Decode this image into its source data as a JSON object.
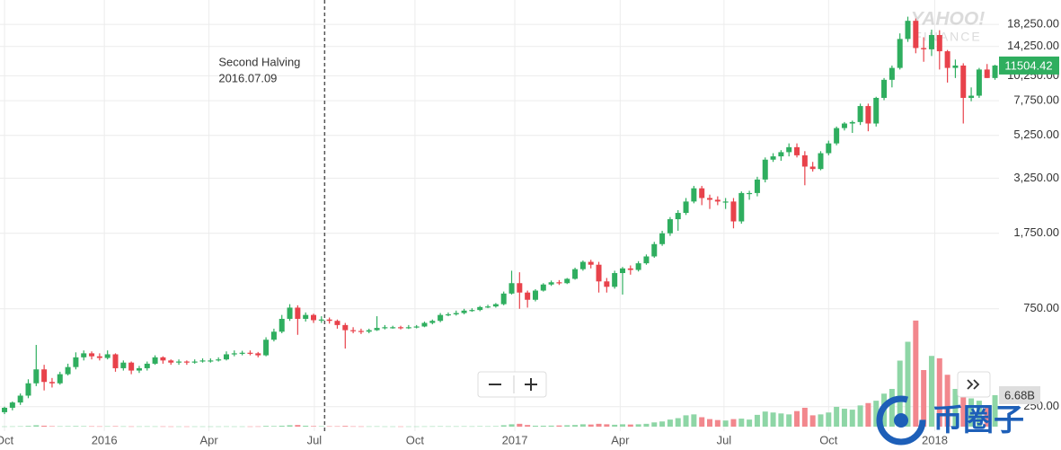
{
  "chart_data": {
    "type": "candlestick",
    "y_log": true,
    "grid": true,
    "ylim": [
      190,
      24000
    ],
    "yticks": [
      {
        "value": 250,
        "label": "250.00"
      },
      {
        "value": 750,
        "label": "750.00"
      },
      {
        "value": 1750,
        "label": "1,750.00"
      },
      {
        "value": 3250,
        "label": "3,250.00"
      },
      {
        "value": 5250,
        "label": "5,250.00"
      },
      {
        "value": 7750,
        "label": "7,750.00"
      },
      {
        "value": 10250,
        "label": "10,250.00"
      },
      {
        "value": 14250,
        "label": "14,250.00"
      },
      {
        "value": 18250,
        "label": "18,250.00"
      }
    ],
    "xlim": [
      -0.57,
      125.28
    ],
    "xticks": [
      {
        "value": 0,
        "label": "Oct"
      },
      {
        "value": 12.6,
        "label": "2016"
      },
      {
        "value": 25.8,
        "label": "Apr"
      },
      {
        "value": 39.1,
        "label": "Jul"
      },
      {
        "value": 51.8,
        "label": "Oct"
      },
      {
        "value": 64.4,
        "label": "2017"
      },
      {
        "value": 77.7,
        "label": "Apr"
      },
      {
        "value": 90.8,
        "label": "Jul"
      },
      {
        "value": 104,
        "label": "Oct"
      },
      {
        "value": 117.4,
        "label": "2018"
      }
    ],
    "up_color": "#2fae5f",
    "down_color": "#e8424b",
    "volume_up_color": "#8ed6a6",
    "volume_down_color": "#f2878d",
    "open": [
      235,
      247,
      262,
      283,
      325,
      380,
      330,
      325,
      360,
      390,
      435,
      455,
      440,
      432,
      450,
      385,
      410,
      375,
      385,
      405,
      435,
      420,
      410,
      415,
      410,
      415,
      420,
      420,
      425,
      450,
      455,
      458,
      455,
      445,
      530,
      580,
      670,
      760,
      670,
      700,
      660,
      665,
      655,
      625,
      590,
      585,
      580,
      590,
      605,
      610,
      610,
      605,
      610,
      615,
      640,
      655,
      700,
      705,
      715,
      735,
      740,
      765,
      770,
      790,
      890,
      1000,
      900,
      830,
      920,
      985,
      1010,
      1000,
      1050,
      1170,
      1270,
      1230,
      1020,
      960,
      1120,
      1180,
      1160,
      1250,
      1350,
      1550,
      1750,
      2050,
      2200,
      2500,
      2900,
      2600,
      2550,
      2500,
      2500,
      2000,
      2750,
      2750,
      3200,
      4000,
      4150,
      4350,
      4600,
      4200,
      3700,
      3600,
      4300,
      4800,
      5700,
      6000,
      6100,
      7300,
      6000,
      8000,
      9800,
      11200,
      15500,
      19000,
      14000,
      13800,
      16200,
      13500,
      11200,
      11500,
      8000,
      8200,
      11000,
      10000
    ],
    "high": [
      250,
      265,
      290,
      340,
      500,
      400,
      345,
      370,
      405,
      460,
      470,
      465,
      455,
      470,
      455,
      420,
      415,
      395,
      415,
      445,
      440,
      425,
      425,
      420,
      425,
      430,
      430,
      435,
      465,
      470,
      468,
      470,
      462,
      545,
      600,
      700,
      790,
      780,
      720,
      710,
      690,
      680,
      665,
      640,
      610,
      600,
      600,
      690,
      625,
      620,
      620,
      625,
      625,
      650,
      665,
      715,
      720,
      735,
      750,
      755,
      775,
      785,
      800,
      910,
      1150,
      1130,
      920,
      935,
      1000,
      1030,
      1035,
      1060,
      1190,
      1290,
      1300,
      1270,
      1060,
      1150,
      1200,
      1220,
      1280,
      1380,
      1590,
      1800,
      2100,
      2270,
      2600,
      2980,
      2980,
      2700,
      2650,
      2600,
      2600,
      2800,
      2820,
      3300,
      4100,
      4300,
      4450,
      4800,
      4800,
      4400,
      3900,
      4400,
      4950,
      5800,
      6100,
      6200,
      7500,
      7500,
      8100,
      10000,
      11500,
      16500,
      19900,
      19500,
      15800,
      17200,
      17100,
      13700,
      12300,
      11800,
      9000,
      11200,
      11700,
      11600
    ],
    "low": [
      230,
      240,
      255,
      275,
      315,
      300,
      310,
      320,
      355,
      380,
      420,
      425,
      420,
      425,
      370,
      375,
      360,
      365,
      375,
      400,
      405,
      400,
      400,
      400,
      405,
      410,
      410,
      415,
      420,
      440,
      445,
      445,
      435,
      440,
      520,
      570,
      655,
      560,
      650,
      640,
      640,
      635,
      600,
      480,
      570,
      565,
      570,
      585,
      595,
      600,
      595,
      598,
      602,
      610,
      630,
      645,
      690,
      695,
      705,
      725,
      730,
      755,
      760,
      780,
      880,
      750,
      760,
      815,
      910,
      970,
      980,
      990,
      1040,
      1150,
      1180,
      900,
      900,
      940,
      880,
      1100,
      1140,
      1230,
      1330,
      1520,
      1700,
      1800,
      2150,
      2450,
      2400,
      2300,
      2400,
      2300,
      1850,
      1950,
      2550,
      2650,
      3100,
      3900,
      3950,
      4150,
      4100,
      3000,
      3500,
      3550,
      4200,
      4700,
      5550,
      5400,
      5900,
      5500,
      5800,
      7800,
      9000,
      11000,
      15000,
      13200,
      12000,
      12800,
      11000,
      9500,
      10000,
      6000,
      7700,
      8000,
      10000,
      9800
    ],
    "close": [
      247,
      262,
      283,
      325,
      380,
      330,
      325,
      360,
      390,
      435,
      455,
      440,
      432,
      450,
      385,
      410,
      375,
      385,
      405,
      435,
      420,
      410,
      415,
      410,
      415,
      420,
      420,
      425,
      450,
      455,
      458,
      455,
      445,
      530,
      580,
      670,
      760,
      670,
      700,
      660,
      665,
      655,
      625,
      590,
      585,
      580,
      590,
      605,
      610,
      610,
      605,
      610,
      615,
      640,
      655,
      700,
      705,
      715,
      735,
      740,
      765,
      770,
      790,
      890,
      1000,
      900,
      830,
      920,
      985,
      1010,
      1000,
      1050,
      1170,
      1270,
      1230,
      1020,
      960,
      1120,
      1180,
      1160,
      1250,
      1350,
      1550,
      1750,
      2050,
      2200,
      2500,
      2900,
      2600,
      2550,
      2500,
      2500,
      2000,
      2750,
      2750,
      3200,
      4000,
      4150,
      4350,
      4600,
      4200,
      3700,
      3600,
      4300,
      4800,
      5700,
      6000,
      6100,
      7300,
      6000,
      8000,
      9800,
      11200,
      15500,
      19000,
      14000,
      13800,
      16200,
      13500,
      11200,
      11500,
      8000,
      8200,
      11000,
      10000,
      11504.42
    ],
    "y2lim": [
      0,
      24
    ],
    "y2ticks": [
      {
        "value": 6.68,
        "label": "6.68B"
      }
    ],
    "volume": [
      0.05,
      0.06,
      0.08,
      0.15,
      0.3,
      0.2,
      0.1,
      0.08,
      0.1,
      0.12,
      0.1,
      0.08,
      0.07,
      0.08,
      0.1,
      0.07,
      0.06,
      0.06,
      0.07,
      0.06,
      0.06,
      0.05,
      0.05,
      0.05,
      0.05,
      0.05,
      0.05,
      0.05,
      0.06,
      0.05,
      0.05,
      0.05,
      0.06,
      0.15,
      0.12,
      0.2,
      0.3,
      0.35,
      0.2,
      0.12,
      0.1,
      0.08,
      0.08,
      0.15,
      0.07,
      0.06,
      0.06,
      0.07,
      0.05,
      0.05,
      0.05,
      0.05,
      0.05,
      0.06,
      0.07,
      0.08,
      0.07,
      0.07,
      0.08,
      0.07,
      0.09,
      0.08,
      0.1,
      0.3,
      0.5,
      0.6,
      0.35,
      0.2,
      0.2,
      0.22,
      0.25,
      0.3,
      0.35,
      0.5,
      0.45,
      0.6,
      0.5,
      0.4,
      0.5,
      0.45,
      0.5,
      0.6,
      0.9,
      1.1,
      1.5,
      1.8,
      2.4,
      2.6,
      2.0,
      1.6,
      1.4,
      1.3,
      1.6,
      1.7,
      1.5,
      2.5,
      3.2,
      3.0,
      2.8,
      2.6,
      3.3,
      4.0,
      2.4,
      2.6,
      3.0,
      4.2,
      3.8,
      3.6,
      4.5,
      5.0,
      5.5,
      7.0,
      8.0,
      14.0,
      18.0,
      22.5,
      12.0,
      15.0,
      14.5,
      11.0,
      8.0,
      9.0,
      6.0,
      5.5,
      4.0,
      6.68
    ],
    "annotation": {
      "lines": [
        "Second Halving",
        "2016.07.09"
      ],
      "x": 40.4
    },
    "watermark": [
      "YAHOO!",
      "FINANCE"
    ],
    "overlay_logo": "币圈子"
  }
}
